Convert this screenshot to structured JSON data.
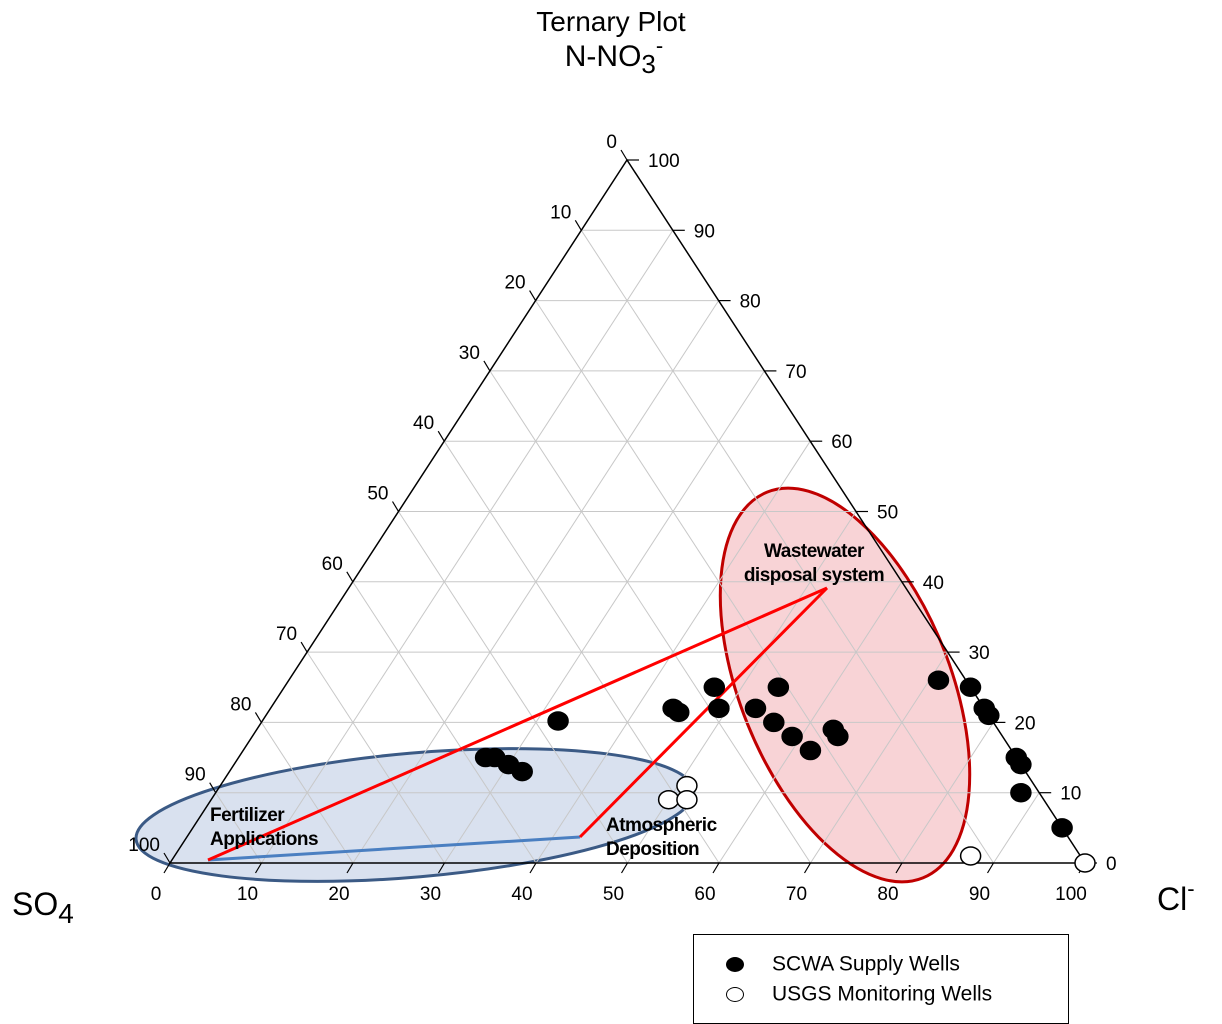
{
  "chart_data": {
    "type": "scatter",
    "subtype": "ternary",
    "title": "Ternary Plot",
    "apex_labels": {
      "top": "N-NO3-",
      "left": "SO4",
      "right": "Cl-"
    },
    "ticks": [
      "0",
      "10",
      "20",
      "30",
      "40",
      "50",
      "60",
      "70",
      "80",
      "90",
      "100"
    ],
    "grid": true,
    "legend_placement": "bottom-right",
    "series": [
      {
        "name": "SCWA Supply Wells",
        "marker": "filled",
        "color": "#000000",
        "points": [
          {
            "SO4": 47,
            "Cl": 32,
            "NO3": 20
          },
          {
            "SO4": 58,
            "Cl": 27,
            "NO3": 15
          },
          {
            "SO4": 57,
            "Cl": 28,
            "NO3": 15
          },
          {
            "SO4": 56,
            "Cl": 30,
            "NO3": 14
          },
          {
            "SO4": 55,
            "Cl": 32,
            "NO3": 13
          },
          {
            "SO4": 34,
            "Cl": 44,
            "NO3": 22
          },
          {
            "SO4": 33,
            "Cl": 44,
            "NO3": 21
          },
          {
            "SO4": 28,
            "Cl": 47,
            "NO3": 25
          },
          {
            "SO4": 25,
            "Cl": 53,
            "NO3": 22
          },
          {
            "SO4": 29,
            "Cl": 49,
            "NO3": 22
          },
          {
            "SO4": 24,
            "Cl": 56,
            "NO3": 20
          },
          {
            "SO4": 23,
            "Cl": 59,
            "NO3": 18
          },
          {
            "SO4": 21,
            "Cl": 54,
            "NO3": 25
          },
          {
            "SO4": 22,
            "Cl": 62,
            "NO3": 16
          },
          {
            "SO4": 18,
            "Cl": 63,
            "NO3": 19
          },
          {
            "SO4": 18,
            "Cl": 64,
            "NO3": 18
          },
          {
            "SO4": 3,
            "Cl": 71,
            "NO3": 26
          },
          {
            "SO4": 0,
            "Cl": 75,
            "NO3": 25
          },
          {
            "SO4": 0,
            "Cl": 78,
            "NO3": 22
          },
          {
            "SO4": 0,
            "Cl": 79,
            "NO3": 21
          },
          {
            "SO4": 0,
            "Cl": 85,
            "NO3": 15
          },
          {
            "SO4": 0,
            "Cl": 86,
            "NO3": 14
          },
          {
            "SO4": 2,
            "Cl": 88,
            "NO3": 10
          },
          {
            "SO4": 0,
            "Cl": 95,
            "NO3": 5
          }
        ]
      },
      {
        "name": "USGS Monitoring Wells",
        "marker": "open",
        "color": "#000000",
        "points": [
          {
            "SO4": 41,
            "Cl": 50,
            "NO3": 9
          },
          {
            "SO4": 38,
            "Cl": 51,
            "NO3": 11
          },
          {
            "SO4": 39,
            "Cl": 52,
            "NO3": 9
          },
          {
            "SO4": 12,
            "Cl": 87,
            "NO3": 1
          },
          {
            "SO4": 0,
            "Cl": 100,
            "NO3": 0
          }
        ]
      }
    ],
    "annotations": [
      {
        "text": "Wastewater disposal system",
        "region": "red-ellipse"
      },
      {
        "text": "Fertilizer Applications",
        "region": "blue-ellipse"
      },
      {
        "text": "Atmospheric Deposition",
        "region": "blue-ellipse-right"
      }
    ],
    "region_colors": {
      "red_fill": "#f8d3d6",
      "red_stroke": "#c00000",
      "blue_fill": "#d9e1ef",
      "blue_stroke": "#3b5a85",
      "mixing_line": "#ff0000",
      "mixing_line_blue": "#4a7fc1"
    }
  }
}
